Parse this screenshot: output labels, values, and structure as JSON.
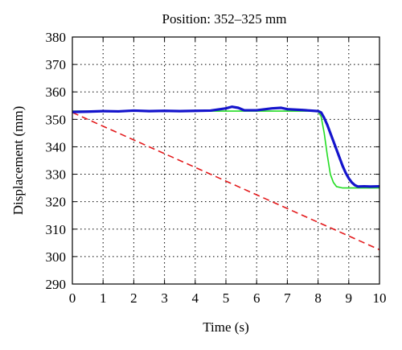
{
  "chart_data": {
    "type": "line",
    "title": "Position: 352–325 mm",
    "xlabel": "Time (s)",
    "ylabel": "Displacement (mm)",
    "xlim": [
      0,
      10
    ],
    "ylim": [
      290,
      380
    ],
    "xticks": [
      "0",
      "1",
      "2",
      "3",
      "4",
      "5",
      "6",
      "7",
      "8",
      "9",
      "10"
    ],
    "yticks": [
      "290",
      "300",
      "310",
      "320",
      "330",
      "340",
      "350",
      "360",
      "370",
      "380"
    ],
    "grid": true,
    "series": [
      {
        "style": "dashed",
        "color": "#e31a1c",
        "x": [
          0,
          10
        ],
        "y": [
          352.5,
          302.5
        ]
      },
      {
        "style": "solid",
        "color": "#22dd22",
        "x": [
          0,
          1,
          2,
          3,
          4,
          5,
          6,
          7,
          8,
          8.1,
          8.2,
          8.3,
          8.4,
          8.5,
          8.6,
          8.8,
          9.0,
          9.5,
          10
        ],
        "y": [
          353,
          353,
          353,
          353,
          353,
          353,
          353,
          353,
          353,
          351,
          345,
          337,
          330,
          327,
          325.5,
          325,
          325,
          325,
          325
        ]
      },
      {
        "style": "solid-thick",
        "color": "#1414cc",
        "x": [
          0,
          0.5,
          1,
          1.5,
          2,
          2.5,
          3,
          3.5,
          4,
          4.5,
          5,
          5.2,
          5.4,
          5.6,
          6,
          6.5,
          6.8,
          7,
          7.5,
          8,
          8.1,
          8.2,
          8.3,
          8.4,
          8.5,
          8.6,
          8.7,
          8.8,
          8.9,
          9.0,
          9.1,
          9.2,
          9.3,
          9.5,
          9.7,
          10
        ],
        "y": [
          352.7,
          352.8,
          353.0,
          352.9,
          353.2,
          353.0,
          353.1,
          353.0,
          353.1,
          353.2,
          354.0,
          354.6,
          354.2,
          353.3,
          353.3,
          354.0,
          354.2,
          353.7,
          353.4,
          353.0,
          352.5,
          350.5,
          348.0,
          345.0,
          342.0,
          339.0,
          336.0,
          333.0,
          330.5,
          328.5,
          327.0,
          326.0,
          325.5,
          325.6,
          325.5,
          325.6
        ]
      }
    ]
  }
}
